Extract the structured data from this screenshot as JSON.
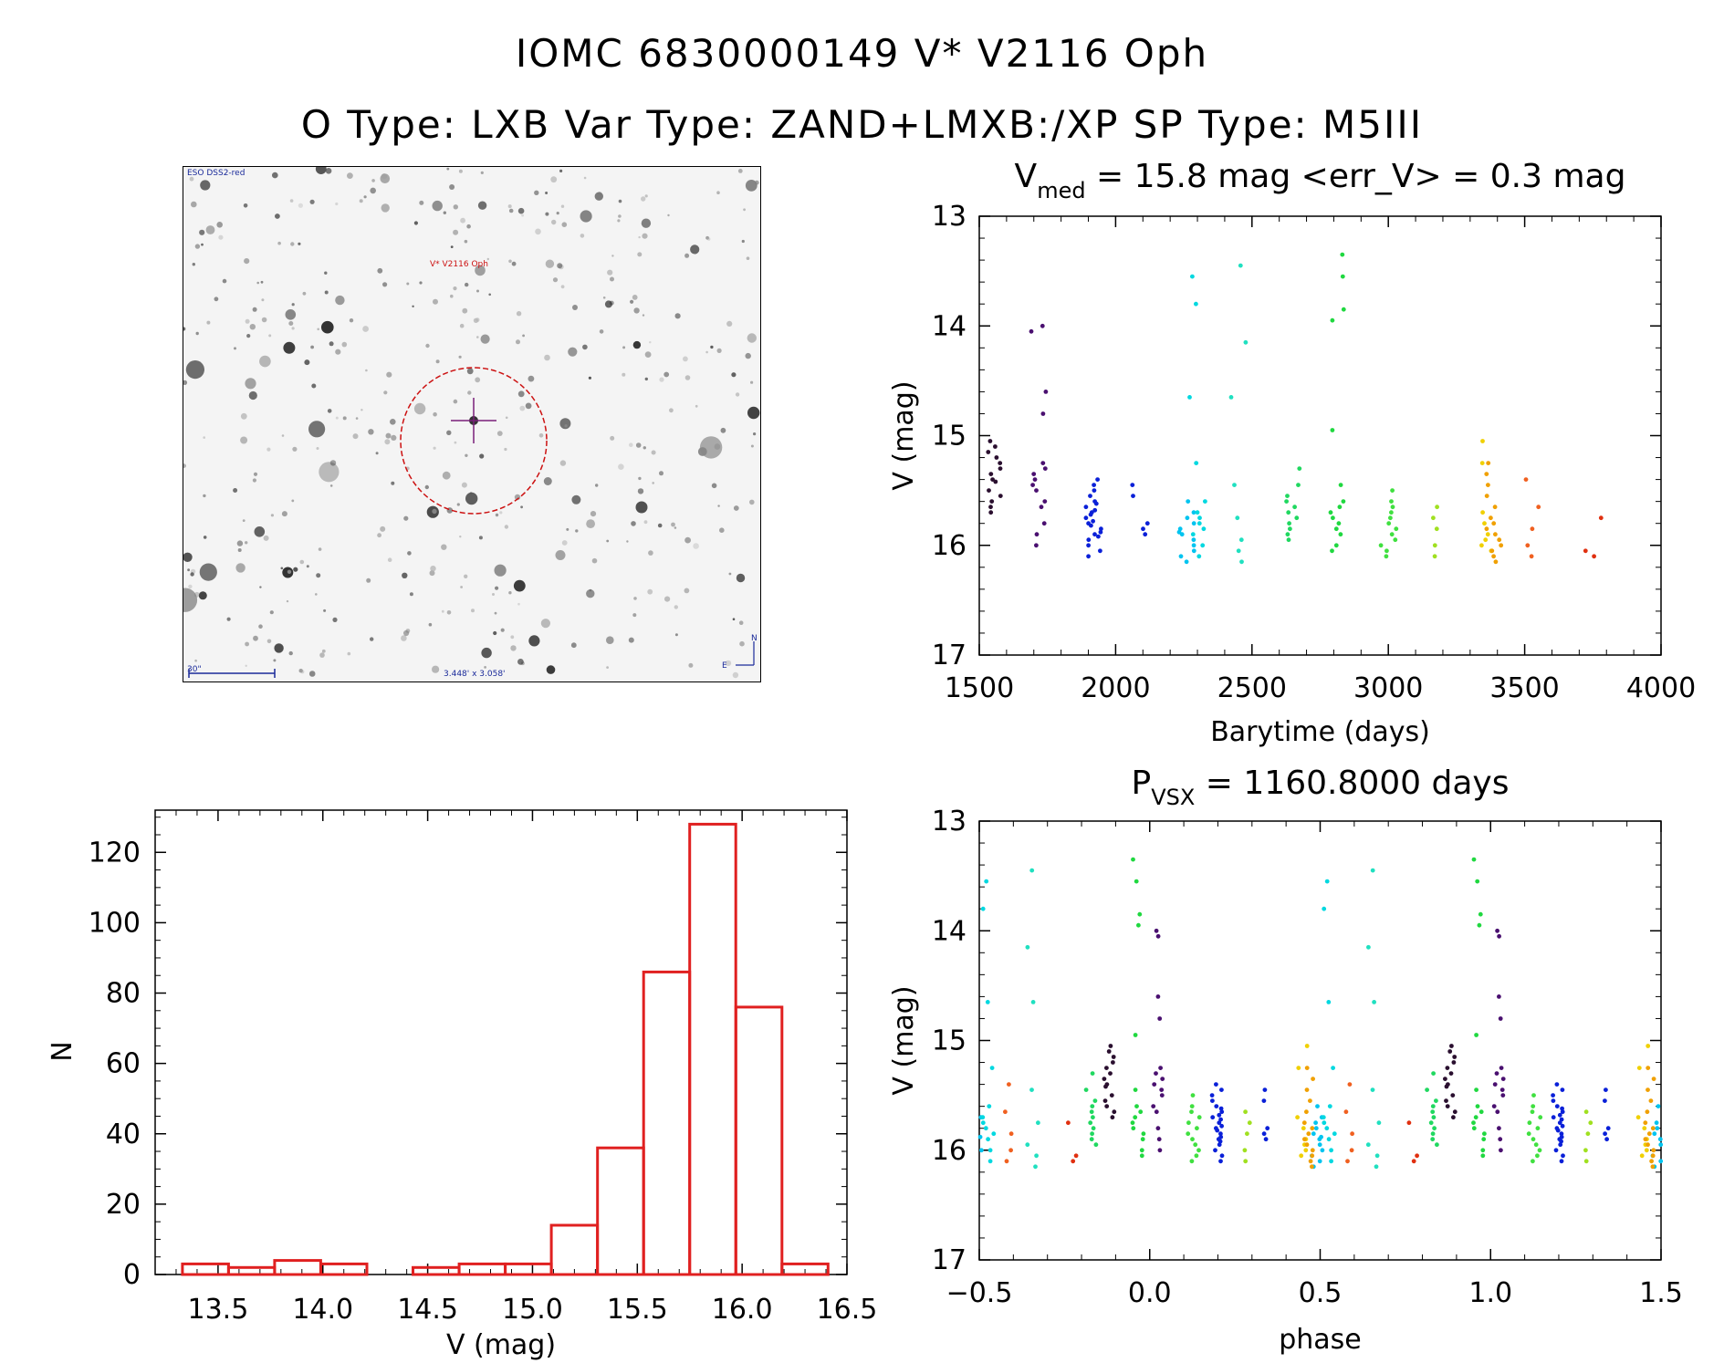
{
  "header": {
    "title_line1": "IOMC 6830000149    V* V2116 Oph",
    "title_line2": "O Type: LXB  Var Type: ZAND+LMXB:/XP  SP Type: M5III"
  },
  "finder": {
    "survey_label": "ESO DSS2-red",
    "target_label": "V* V2116 Oph",
    "scale_label": "30\"",
    "fov_label": "3.448' x 3.058'",
    "north_label": "N",
    "east_label": "E",
    "marker_color": "#cc1111",
    "cross_color": "#7a1f7a"
  },
  "chart_data": [
    {
      "id": "lightcurve",
      "type": "scatter",
      "title_main": "V",
      "title_sub": "med",
      "title_rest": " = 15.8 mag <err_V> = 0.3 mag",
      "xlabel": "Barytime (days)",
      "ylabel": "V (mag)",
      "xlim": [
        1500,
        4000
      ],
      "ylim": [
        17,
        13
      ],
      "xticks": [
        "1500",
        "2000",
        "2500",
        "3000",
        "3500",
        "4000"
      ],
      "yticks": [
        "13",
        "14",
        "15",
        "16",
        "17"
      ],
      "groups": [
        {
          "x": 1550,
          "color": "#2a0f2f",
          "mags": [
            15.05,
            15.15,
            15.25,
            15.35,
            15.42,
            15.5,
            15.55,
            15.6,
            15.7,
            15.4,
            15.3,
            15.2,
            15.65,
            15.1
          ]
        },
        {
          "x": 1720,
          "color": "#4a1070",
          "mags": [
            14.0,
            14.05,
            14.6,
            14.8,
            15.3,
            15.35,
            15.4,
            15.5,
            15.6,
            15.65,
            15.8,
            15.9,
            16.0,
            15.25,
            15.45
          ]
        },
        {
          "x": 1920,
          "color": "#0a20d8",
          "mags": [
            15.4,
            15.45,
            15.5,
            15.55,
            15.6,
            15.65,
            15.7,
            15.72,
            15.75,
            15.78,
            15.8,
            15.85,
            15.88,
            15.9,
            15.95,
            16.0,
            16.05,
            16.1,
            15.62,
            15.68,
            15.82,
            15.92
          ]
        },
        {
          "x": 2090,
          "color": "#0a20d8",
          "mags": [
            15.45,
            15.55,
            15.8,
            15.85,
            15.9
          ]
        },
        {
          "x": 2260,
          "color": "#00c4f0",
          "mags": [
            15.6,
            15.7,
            15.8,
            15.85,
            15.9,
            15.95,
            16.0,
            16.05,
            16.1,
            16.15,
            15.75,
            15.88
          ]
        },
        {
          "x": 2300,
          "color": "#00d8e0",
          "mags": [
            13.55,
            13.8,
            14.65,
            15.25,
            15.6,
            15.7,
            15.75,
            15.8,
            15.85,
            15.9,
            16.0,
            16.1
          ]
        },
        {
          "x": 2450,
          "color": "#20e0c0",
          "mags": [
            13.45,
            14.15,
            14.65,
            15.45,
            15.75,
            15.95,
            16.05,
            16.15
          ]
        },
        {
          "x": 2650,
          "color": "#20d860",
          "mags": [
            15.3,
            15.45,
            15.55,
            15.6,
            15.65,
            15.7,
            15.75,
            15.8,
            15.85,
            15.9,
            15.95
          ]
        },
        {
          "x": 2810,
          "color": "#20d840",
          "mags": [
            13.35,
            13.55,
            13.85,
            13.95,
            14.95,
            15.45,
            15.6,
            15.65,
            15.7,
            15.75,
            15.8,
            15.85,
            15.9,
            16.0,
            16.05
          ]
        },
        {
          "x": 3000,
          "color": "#40e040",
          "mags": [
            15.5,
            15.6,
            15.65,
            15.7,
            15.75,
            15.8,
            15.85,
            15.9,
            15.95,
            16.0,
            16.05,
            16.1
          ]
        },
        {
          "x": 3190,
          "color": "#a0e020",
          "mags": [
            15.65,
            15.75,
            15.85,
            16.0,
            16.1
          ]
        },
        {
          "x": 3370,
          "color": "#f0d000",
          "mags": [
            15.05,
            15.25,
            15.7,
            15.8,
            15.9,
            15.95,
            16.0,
            16.05
          ]
        },
        {
          "x": 3390,
          "color": "#f0a000",
          "mags": [
            15.25,
            15.35,
            15.45,
            15.55,
            15.65,
            15.75,
            15.8,
            15.85,
            15.9,
            15.95,
            16.0,
            16.05,
            16.1,
            16.15
          ]
        },
        {
          "x": 3530,
          "color": "#f06020",
          "mags": [
            15.4,
            15.65,
            15.85,
            16.0,
            16.1
          ]
        },
        {
          "x": 3750,
          "color": "#e03010",
          "mags": [
            15.75,
            16.05,
            16.1
          ]
        }
      ]
    },
    {
      "id": "histogram",
      "type": "bar",
      "xlabel": "V (mag)",
      "ylabel": "N",
      "xlim": [
        13.2,
        16.5
      ],
      "ylim": [
        0,
        132
      ],
      "xticks": [
        "13.5",
        "14.0",
        "14.5",
        "15.0",
        "15.5",
        "16.0",
        "16.5"
      ],
      "yticks": [
        "0",
        "20",
        "40",
        "60",
        "80",
        "100",
        "120"
      ],
      "bar_color": "#e02020",
      "bin_start": 13.33,
      "bin_width": 0.22,
      "values": [
        3,
        2,
        4,
        3,
        0,
        2,
        3,
        3,
        14,
        36,
        86,
        128,
        76,
        3
      ]
    },
    {
      "id": "phased",
      "type": "scatter",
      "title_main": "P",
      "title_sub": "VSX",
      "title_rest": " = 1160.8000 days",
      "xlabel": "phase",
      "ylabel": "V (mag)",
      "xlim": [
        -0.5,
        1.5
      ],
      "ylim": [
        17,
        13
      ],
      "xticks": [
        "−0.5",
        "0.0",
        "0.5",
        "1.0",
        "1.5"
      ],
      "yticks": [
        "13",
        "14",
        "15",
        "16",
        "17"
      ],
      "period_days": 1160.8,
      "epoch_days": 2850
    }
  ]
}
